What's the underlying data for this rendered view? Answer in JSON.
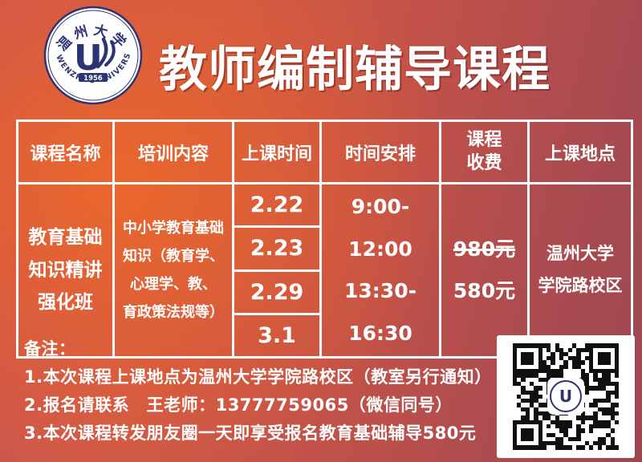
{
  "header": {
    "title": "教师编制辅导课程"
  },
  "logo": {
    "university_cn": "温州大学",
    "university_en": "WENZHOU UNIVERSITY",
    "year": "1956",
    "mark": "U"
  },
  "table": {
    "headers": [
      "课程名称",
      "培训内容",
      "上课时间",
      "时间安排",
      "课程收费",
      "上课地点"
    ],
    "course_name_lines": [
      "教育基础",
      "知识精讲",
      "强化班"
    ],
    "content_lines": [
      "中小学教育基础",
      "知识（教育学、",
      "心理学、教、",
      "育政策法规等）"
    ],
    "dates": [
      "2.22",
      "2.23",
      "2.29",
      "3.1"
    ],
    "schedule_lines": [
      "9:00-12:00",
      "13:30-16:30"
    ],
    "fee_original": "980元",
    "fee_discount": "580元",
    "location_lines": [
      "温州大学",
      "学院路校区"
    ]
  },
  "notes": {
    "label": "备注：",
    "items": [
      "1.本次课程上课地点为温州大学学院路校区（教室另行通知）",
      "2.报名请联系　王老师：13777759065（微信同号）",
      "3.本次课程转发朋友圈一天即享受报名教育基础辅导580元"
    ]
  },
  "colors": {
    "accent_orange": "#e2663a",
    "dark_red": "#9d4751",
    "navy": "#2e3472",
    "white": "#ffffff"
  },
  "qr": {
    "label": "wechat-registration-qr-code"
  }
}
